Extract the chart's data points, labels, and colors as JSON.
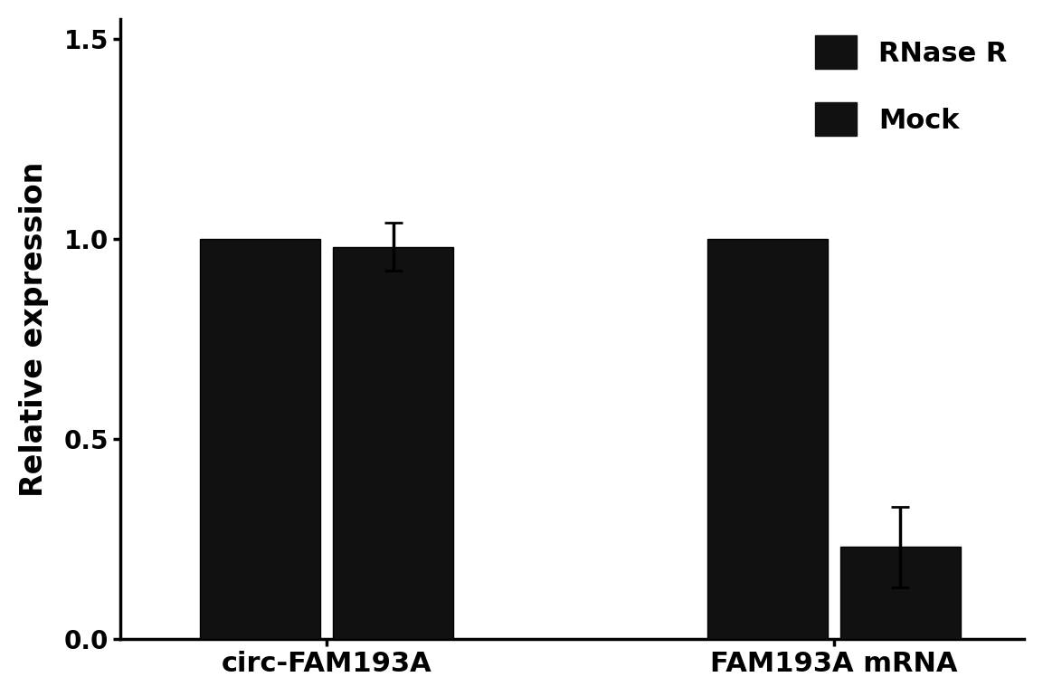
{
  "groups": [
    "circ-FAM193A",
    "FAM193A mRNA"
  ],
  "series": [
    "RNase R",
    "Mock"
  ],
  "values": {
    "RNase R": [
      1.0,
      1.0
    ],
    "Mock": [
      0.98,
      0.23
    ]
  },
  "errors": {
    "RNase R": [
      0.0,
      0.0
    ],
    "Mock": [
      0.06,
      0.1
    ]
  },
  "bar_color": "#111111",
  "bar_width": 0.38,
  "ylabel": "Relative expression",
  "ylim": [
    0,
    1.55
  ],
  "yticks": [
    0.0,
    0.5,
    1.0,
    1.5
  ],
  "legend_labels": [
    "RNase R",
    "Mock"
  ],
  "legend_fontsize": 22,
  "ylabel_fontsize": 24,
  "tick_fontsize": 20,
  "xlabel_fontsize": 22,
  "background_color": "#ffffff",
  "error_capsize": 7,
  "error_linewidth": 2.5,
  "bar_edgecolor": "#000000"
}
